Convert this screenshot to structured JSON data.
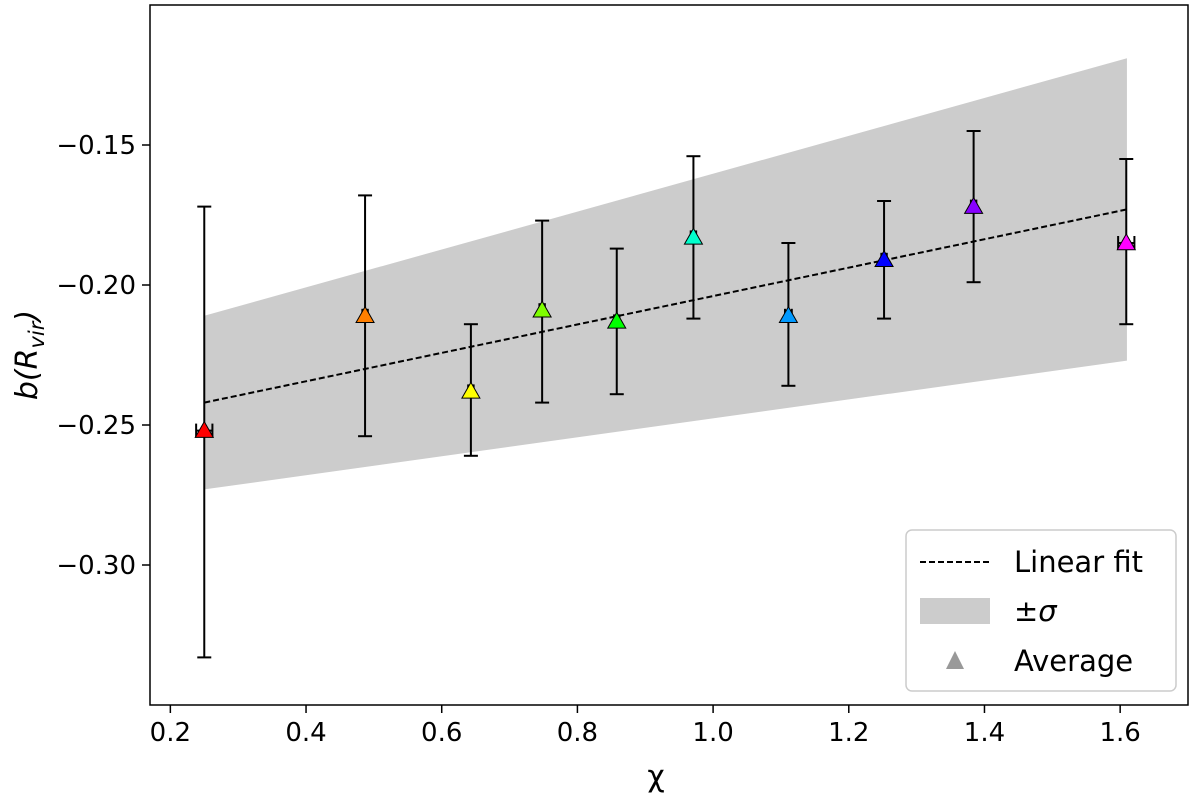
{
  "chart_data": {
    "type": "scatter",
    "xlabel": "χ",
    "ylabel_main": "b(R",
    "ylabel_sub": "vir",
    "ylabel_close": ")",
    "xlim": [
      0.17,
      1.7
    ],
    "ylim": [
      -0.35,
      -0.1
    ],
    "x_ticks": [
      0.2,
      0.4,
      0.6,
      0.8,
      1.0,
      1.2,
      1.4,
      1.6
    ],
    "x_tick_labels": [
      "0.2",
      "0.4",
      "0.6",
      "0.8",
      "1.0",
      "1.2",
      "1.4",
      "1.6"
    ],
    "y_ticks": [
      -0.3,
      -0.25,
      -0.2,
      -0.15
    ],
    "y_tick_labels": [
      "−0.30",
      "−0.25",
      "−0.20",
      "−0.15"
    ],
    "grid": false,
    "legend_position": "bottom-right",
    "points": [
      {
        "x": 0.25,
        "y": -0.252,
        "ylow": -0.333,
        "yhigh": -0.172,
        "xerr": 0.012,
        "color": "#ff0000"
      },
      {
        "x": 0.487,
        "y": -0.211,
        "ylow": -0.254,
        "yhigh": -0.168,
        "xerr": 0.004,
        "color": "#ff7f00"
      },
      {
        "x": 0.643,
        "y": -0.238,
        "ylow": -0.261,
        "yhigh": -0.214,
        "xerr": 0.004,
        "color": "#ffff00"
      },
      {
        "x": 0.748,
        "y": -0.209,
        "ylow": -0.242,
        "yhigh": -0.177,
        "xerr": 0.004,
        "color": "#7fff00"
      },
      {
        "x": 0.858,
        "y": -0.213,
        "ylow": -0.239,
        "yhigh": -0.187,
        "xerr": 0.004,
        "color": "#00ff00"
      },
      {
        "x": 0.971,
        "y": -0.183,
        "ylow": -0.212,
        "yhigh": -0.154,
        "xerr": 0.004,
        "color": "#00ffcc"
      },
      {
        "x": 1.111,
        "y": -0.211,
        "ylow": -0.236,
        "yhigh": -0.185,
        "xerr": 0.005,
        "color": "#0099ff"
      },
      {
        "x": 1.252,
        "y": -0.191,
        "ylow": -0.212,
        "yhigh": -0.17,
        "xerr": 0.004,
        "color": "#0000ff"
      },
      {
        "x": 1.384,
        "y": -0.172,
        "ylow": -0.199,
        "yhigh": -0.145,
        "xerr": 0.004,
        "color": "#8800ff"
      },
      {
        "x": 1.609,
        "y": -0.185,
        "ylow": -0.214,
        "yhigh": -0.155,
        "xerr": 0.012,
        "color": "#ff00ff"
      }
    ],
    "fit_line": {
      "x": [
        0.25,
        1.61
      ],
      "y": [
        -0.242,
        -0.173
      ]
    },
    "band": {
      "x": [
        0.25,
        1.61
      ],
      "upper": [
        -0.211,
        -0.119
      ],
      "lower": [
        -0.273,
        -0.227
      ]
    },
    "legend": [
      {
        "label": "Linear fit",
        "kind": "line",
        "color": "#000000"
      },
      {
        "label": "±σ",
        "kind": "band",
        "color": "#cccccc"
      },
      {
        "label": "Average",
        "kind": "marker",
        "color": "#999999"
      }
    ]
  }
}
